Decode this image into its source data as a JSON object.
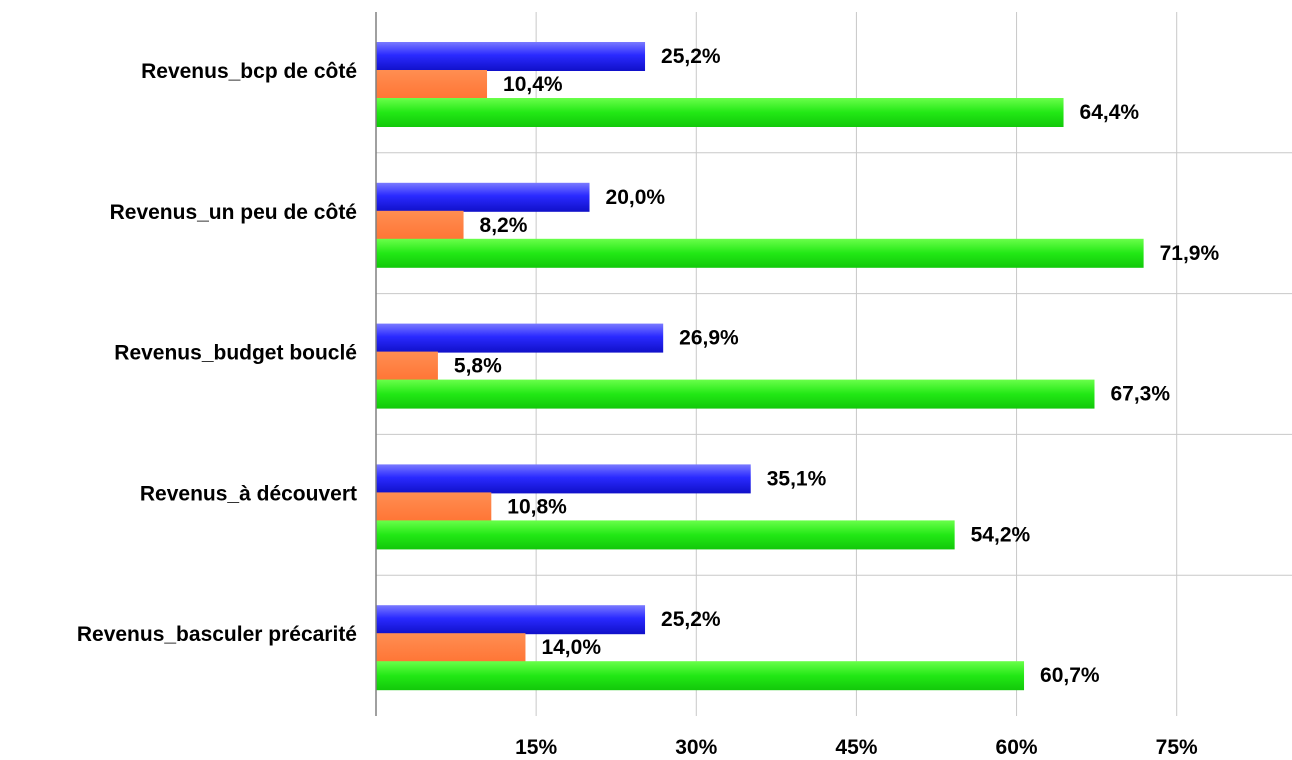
{
  "chart_data": {
    "type": "bar",
    "orientation": "horizontal",
    "categories": [
      "Revenus_bcp de côté",
      "Revenus_un peu de côté",
      "Revenus_budget bouclé",
      "Revenus_à découvert",
      "Revenus_basculer précarité"
    ],
    "series": [
      {
        "values": [
          25.2,
          20.0,
          26.9,
          35.1,
          25.2
        ],
        "labels": [
          "25,2%",
          "20,0%",
          "26,9%",
          "35,1%",
          "25,2%"
        ],
        "color": "#3333ff"
      },
      {
        "values": [
          10.4,
          8.2,
          5.8,
          10.8,
          14.0
        ],
        "labels": [
          "10,4%",
          "8,2%",
          "5,8%",
          "10,8%",
          "14,0%"
        ],
        "color": "#ff7f3f"
      },
      {
        "values": [
          64.4,
          71.9,
          67.3,
          54.2,
          60.7
        ],
        "labels": [
          "64,4%",
          "71,9%",
          "67,3%",
          "54,2%",
          "60,7%"
        ],
        "color": "#22dd11"
      }
    ],
    "xticks": [
      15,
      30,
      45,
      60,
      75
    ],
    "xtick_labels": [
      "15%",
      "30%",
      "45%",
      "60%",
      "75%"
    ],
    "xlim": [
      0,
      85.8
    ],
    "title": "",
    "xlabel": "",
    "ylabel": "",
    "grid": true,
    "legend": "none"
  }
}
